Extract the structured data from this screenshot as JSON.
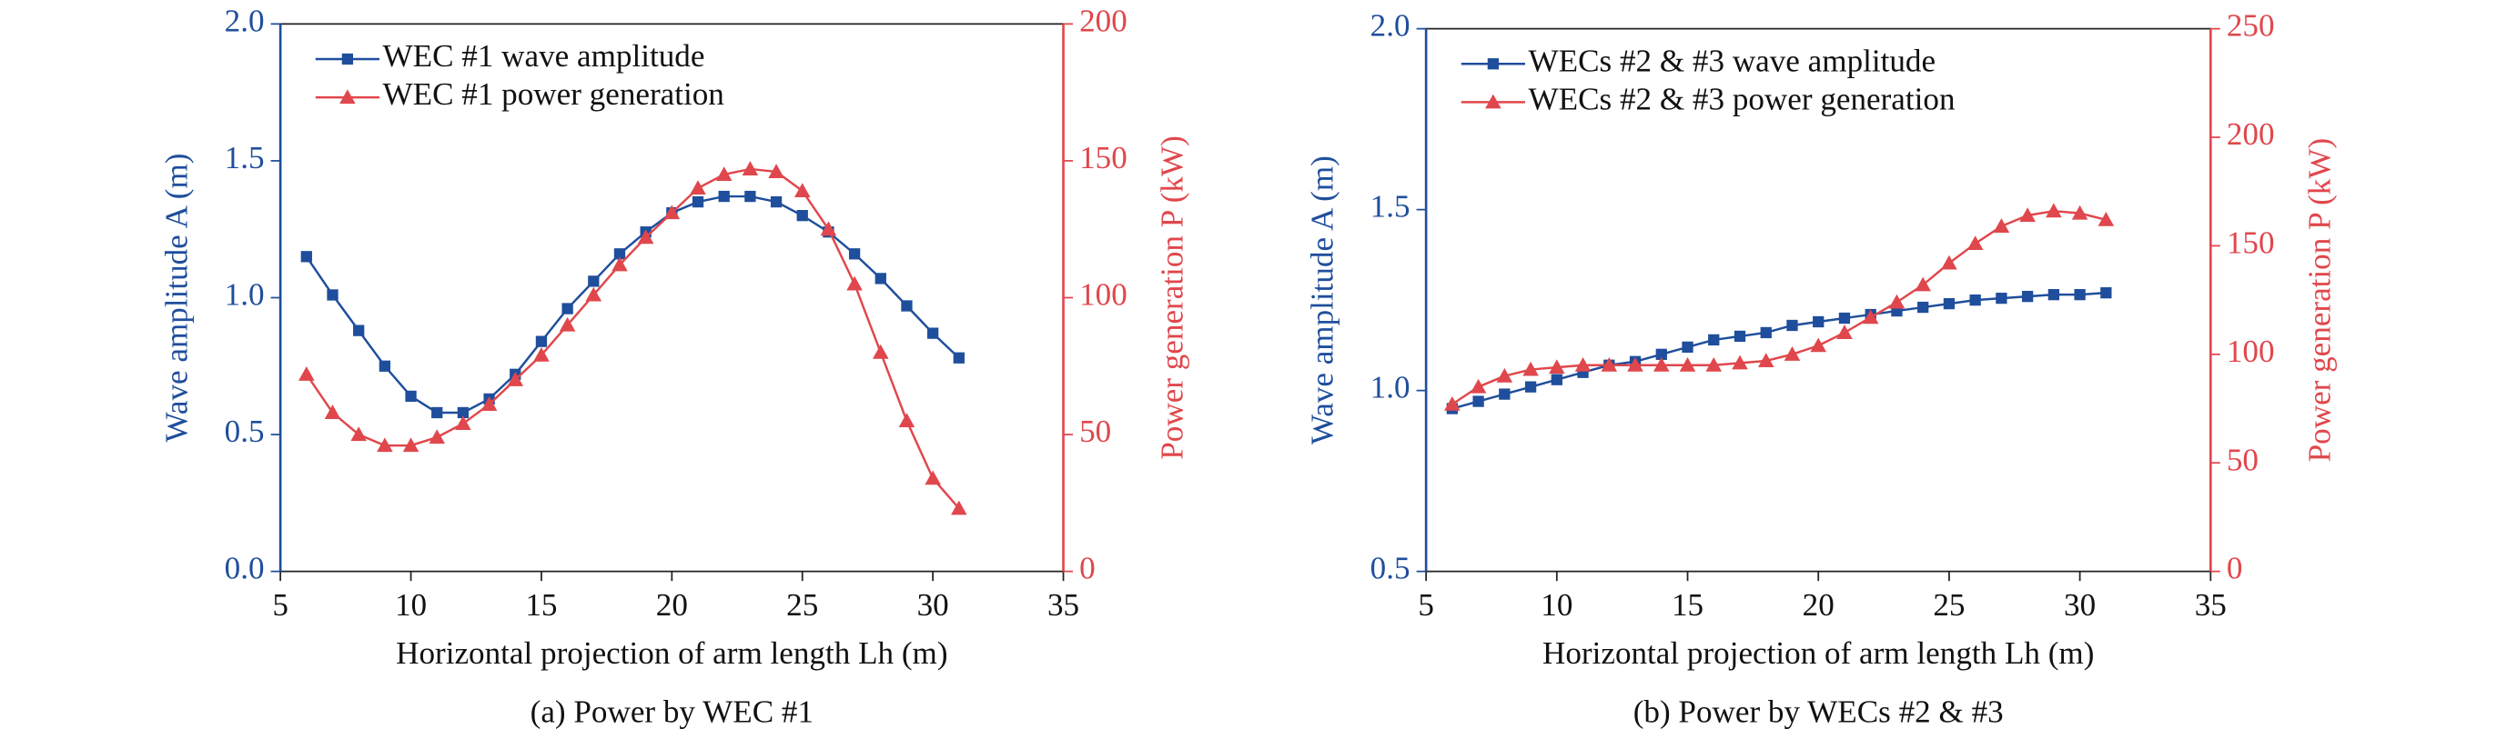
{
  "chart_data": [
    {
      "type": "line",
      "caption": "(a) Power by WEC #1",
      "xlabel": "Horizontal projection of arm length Lh (m)",
      "ylabel": "Wave amplitude A (m)",
      "y2label": "Power generation P (kW)",
      "x": [
        6,
        7,
        8,
        9,
        10,
        11,
        12,
        13,
        14,
        15,
        16,
        17,
        18,
        19,
        20,
        21,
        22,
        23,
        24,
        25,
        26,
        27,
        28,
        29,
        30,
        31
      ],
      "xlim": [
        5,
        35
      ],
      "xticks": [
        5,
        10,
        15,
        20,
        25,
        30,
        35
      ],
      "ylim": [
        0,
        2
      ],
      "yticks": [
        {
          "value": 0,
          "label": "0.0"
        },
        0.5,
        {
          "value": 1,
          "label": "1.0"
        },
        1.5,
        {
          "value": 2,
          "label": "2.0"
        }
      ],
      "y2lim": [
        0,
        200
      ],
      "y2ticks": [
        0,
        50,
        100,
        150,
        200
      ],
      "legend": "upper left",
      "series": [
        {
          "name": "WEC #1 wave amplitude",
          "color": "#1f4e9c",
          "marker": "square",
          "values": [
            1.15,
            1.01,
            0.88,
            0.75,
            0.64,
            0.58,
            0.58,
            0.63,
            0.72,
            0.84,
            0.96,
            1.06,
            1.16,
            1.24,
            1.31,
            1.35,
            1.37,
            1.37,
            1.35,
            1.3,
            1.24,
            1.16,
            1.07,
            0.97,
            0.87,
            0.78
          ]
        },
        {
          "name": "WEC #1 power generation",
          "color": "#e0474c",
          "marker": "triangle",
          "axis": "y2",
          "values": [
            72,
            58,
            50,
            46,
            46,
            49,
            54,
            61,
            70,
            79,
            90,
            101,
            112,
            122,
            131,
            140,
            145,
            147,
            146,
            139,
            125,
            105,
            80,
            55,
            34,
            23
          ]
        }
      ]
    },
    {
      "type": "line",
      "caption": "(b) Power by WECs #2 & #3",
      "xlabel": "Horizontal projection of arm length Lh (m)",
      "ylabel": "Wave amplitude A (m)",
      "y2label": "Power generation P (kW)",
      "x": [
        6,
        7,
        8,
        9,
        10,
        11,
        12,
        13,
        14,
        15,
        16,
        17,
        18,
        19,
        20,
        21,
        22,
        23,
        24,
        25,
        26,
        27,
        28,
        29,
        30,
        31
      ],
      "xlim": [
        5,
        35
      ],
      "xticks": [
        5,
        10,
        15,
        20,
        25,
        30,
        35
      ],
      "ylim": [
        0.5,
        2
      ],
      "yticks": [
        0.5,
        {
          "value": 1,
          "label": "1.0"
        },
        1.5,
        {
          "value": 2,
          "label": "2.0"
        }
      ],
      "y2lim": [
        0,
        250
      ],
      "y2ticks": [
        0,
        50,
        100,
        150,
        200,
        250
      ],
      "legend": "upper left",
      "series": [
        {
          "name": "WECs #2 & #3 wave amplitude",
          "color": "#1f4e9c",
          "marker": "square",
          "values": [
            0.95,
            0.97,
            0.99,
            1.01,
            1.03,
            1.05,
            1.07,
            1.08,
            1.1,
            1.12,
            1.14,
            1.15,
            1.16,
            1.18,
            1.19,
            1.2,
            1.21,
            1.22,
            1.23,
            1.24,
            1.25,
            1.255,
            1.26,
            1.265,
            1.265,
            1.27
          ]
        },
        {
          "name": "WECs #2 & #3 power generation",
          "color": "#e0474c",
          "marker": "triangle",
          "axis": "y2",
          "values": [
            77,
            85,
            90,
            93,
            94,
            95,
            95,
            95,
            95,
            95,
            95,
            96,
            97,
            100,
            104,
            110,
            117,
            124,
            132,
            142,
            151,
            159,
            164,
            166,
            165,
            162
          ]
        }
      ]
    }
  ]
}
